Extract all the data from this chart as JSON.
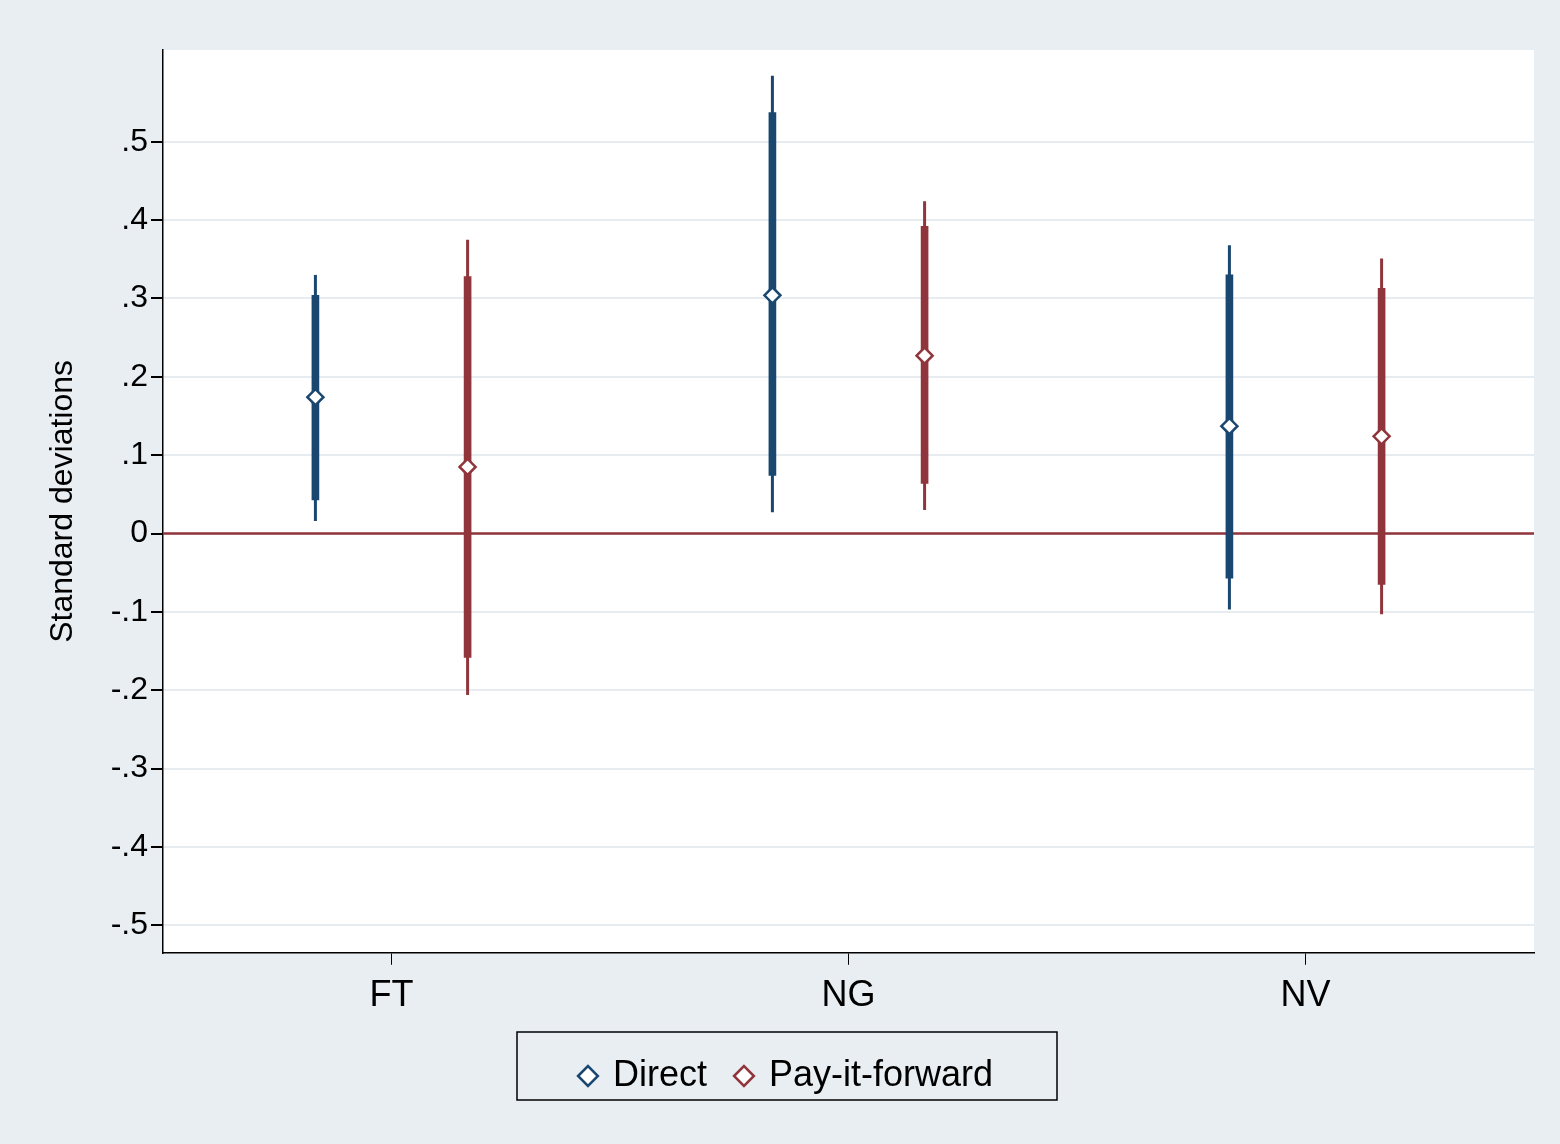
{
  "chart_data": {
    "type": "scatter",
    "ylabel": "Standard deviations",
    "categories": [
      "FT",
      "NG",
      "NV"
    ],
    "ylim": [
      -0.535,
      0.617
    ],
    "yticks": [
      {
        "value": -0.5,
        "label": "-.5"
      },
      {
        "value": -0.4,
        "label": "-.4"
      },
      {
        "value": -0.3,
        "label": "-.3"
      },
      {
        "value": -0.2,
        "label": "-.2"
      },
      {
        "value": -0.1,
        "label": "-.1"
      },
      0,
      {
        "value": 0.1,
        "label": ".1"
      },
      {
        "value": 0.2,
        "label": ".2"
      },
      {
        "value": 0.3,
        "label": ".3"
      },
      {
        "value": 0.4,
        "label": ".4"
      },
      {
        "value": 0.5,
        "label": ".5"
      }
    ],
    "grid": "y",
    "legend": "bottom",
    "marker": "diamond",
    "ref_lines": [
      {
        "axis": "y",
        "value": 0,
        "color": "#90353b"
      }
    ],
    "series": [
      {
        "name": "Direct",
        "color": "#1a476f",
        "values": [
          0.174,
          0.304,
          0.137
        ],
        "errors": [
          [
            0.016,
            0.33
          ],
          [
            0.027,
            0.584
          ],
          [
            -0.097,
            0.368
          ]
        ]
      },
      {
        "name": "Pay-it-forward",
        "color": "#90353b",
        "values": [
          0.085,
          0.227,
          0.124
        ],
        "errors": [
          [
            -0.206,
            0.375
          ],
          [
            0.03,
            0.424
          ],
          [
            -0.103,
            0.351
          ]
        ]
      },
      {
        "type": "bar",
        "color": "#1a476f",
        "base": [
          0.043,
          0.074,
          -0.057
        ],
        "values": [
          0.261,
          0.463,
          0.387
        ]
      },
      {
        "type": "bar",
        "color": "#90353b",
        "base": [
          -0.158,
          0.064,
          -0.065
        ],
        "values": [
          0.486,
          0.328,
          0.378
        ]
      }
    ]
  }
}
